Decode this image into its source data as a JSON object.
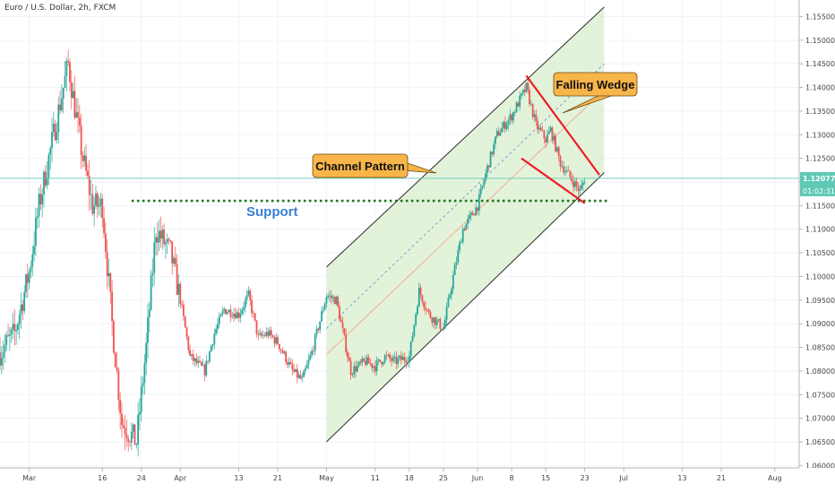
{
  "chart_data": {
    "type": "candlestick",
    "title": "Euro / U.S. Dollar, 2h, FXCM",
    "xlabel": "",
    "ylabel": "",
    "ylim": [
      1.0595,
      1.1585
    ],
    "price_ticks": [
      "1.15500",
      "1.15000",
      "1.14500",
      "1.14000",
      "1.13500",
      "1.13000",
      "1.12500",
      "1.12000",
      "1.11500",
      "1.11000",
      "1.10500",
      "1.10000",
      "1.09500",
      "1.09000",
      "1.08500",
      "1.08000",
      "1.07500",
      "1.07000",
      "1.06500",
      "1.06000"
    ],
    "date_ticks": [
      {
        "label": "Mar",
        "date": "2020-03-01"
      },
      {
        "label": "16",
        "date": "2020-03-16"
      },
      {
        "label": "24",
        "date": "2020-03-24"
      },
      {
        "label": "Apr",
        "date": "2020-04-01"
      },
      {
        "label": "13",
        "date": "2020-04-13"
      },
      {
        "label": "21",
        "date": "2020-04-21"
      },
      {
        "label": "May",
        "date": "2020-05-01"
      },
      {
        "label": "11",
        "date": "2020-05-11"
      },
      {
        "label": "18",
        "date": "2020-05-18"
      },
      {
        "label": "25",
        "date": "2020-05-25"
      },
      {
        "label": "Jun",
        "date": "2020-06-01"
      },
      {
        "label": "8",
        "date": "2020-06-08"
      },
      {
        "label": "15",
        "date": "2020-06-15"
      },
      {
        "label": "23",
        "date": "2020-06-23"
      },
      {
        "label": "Jul",
        "date": "2020-07-01"
      },
      {
        "label": "13",
        "date": "2020-07-13"
      },
      {
        "label": "21",
        "date": "2020-07-21"
      },
      {
        "label": "Aug",
        "date": "2020-08-01"
      }
    ],
    "x_domain": [
      "2020-02-24",
      "2020-08-06"
    ],
    "current_price": "1.12077",
    "countdown": "01:02:31",
    "price_path": [
      [
        "2020-02-24",
        1.084
      ],
      [
        "2020-02-27",
        1.088
      ],
      [
        "2020-03-01",
        1.101
      ],
      [
        "2020-03-03",
        1.115
      ],
      [
        "2020-03-06",
        1.13
      ],
      [
        "2020-03-09",
        1.145
      ],
      [
        "2020-03-10",
        1.138
      ],
      [
        "2020-03-12",
        1.125
      ],
      [
        "2020-03-14",
        1.115
      ],
      [
        "2020-03-16",
        1.115
      ],
      [
        "2020-03-18",
        1.09
      ],
      [
        "2020-03-20",
        1.069
      ],
      [
        "2020-03-23",
        1.065
      ],
      [
        "2020-03-25",
        1.085
      ],
      [
        "2020-03-27",
        1.11
      ],
      [
        "2020-03-30",
        1.105
      ],
      [
        "2020-04-01",
        1.095
      ],
      [
        "2020-04-03",
        1.083
      ],
      [
        "2020-04-06",
        1.08
      ],
      [
        "2020-04-08",
        1.088
      ],
      [
        "2020-04-10",
        1.093
      ],
      [
        "2020-04-13",
        1.092
      ],
      [
        "2020-04-15",
        1.096
      ],
      [
        "2020-04-17",
        1.087
      ],
      [
        "2020-04-19",
        1.088
      ],
      [
        "2020-04-21",
        1.086
      ],
      [
        "2020-04-24",
        1.08
      ],
      [
        "2020-04-26",
        1.078
      ],
      [
        "2020-04-28",
        1.084
      ],
      [
        "2020-05-01",
        1.096
      ],
      [
        "2020-05-03",
        1.095
      ],
      [
        "2020-05-06",
        1.08
      ],
      [
        "2020-05-09",
        1.082
      ],
      [
        "2020-05-11",
        1.081
      ],
      [
        "2020-05-13",
        1.083
      ],
      [
        "2020-05-15",
        1.082
      ],
      [
        "2020-05-18",
        1.083
      ],
      [
        "2020-05-20",
        1.097
      ],
      [
        "2020-05-22",
        1.092
      ],
      [
        "2020-05-25",
        1.089
      ],
      [
        "2020-05-27",
        1.1
      ],
      [
        "2020-05-29",
        1.11
      ],
      [
        "2020-06-01",
        1.115
      ],
      [
        "2020-06-03",
        1.123
      ],
      [
        "2020-06-05",
        1.13
      ],
      [
        "2020-06-08",
        1.134
      ],
      [
        "2020-06-10",
        1.138
      ],
      [
        "2020-06-11",
        1.14
      ],
      [
        "2020-06-13",
        1.132
      ],
      [
        "2020-06-15",
        1.129
      ],
      [
        "2020-06-16",
        1.131
      ],
      [
        "2020-06-18",
        1.124
      ],
      [
        "2020-06-20",
        1.121
      ],
      [
        "2020-06-22",
        1.118
      ],
      [
        "2020-06-23",
        1.1207
      ]
    ],
    "support": {
      "label": "Support",
      "price": 1.116,
      "from": "2020-03-22",
      "to": "2020-06-28"
    },
    "channel": {
      "label": "Channel Pattern",
      "upper": [
        [
          "2020-05-01",
          1.102
        ],
        [
          "2020-06-27",
          1.157
        ]
      ],
      "lower": [
        [
          "2020-05-01",
          1.065
        ],
        [
          "2020-06-27",
          1.122
        ]
      ],
      "mid": [
        [
          "2020-05-01",
          1.0835
        ],
        [
          "2020-06-27",
          1.1395
        ]
      ]
    },
    "wedge": {
      "label": "Falling Wedge",
      "upper": [
        [
          "2020-06-11",
          1.1425
        ],
        [
          "2020-06-26",
          1.1215
        ]
      ],
      "lower": [
        [
          "2020-06-10",
          1.125
        ],
        [
          "2020-06-23",
          1.1155
        ]
      ]
    },
    "grid": true,
    "colors": {
      "up": "#26a69a",
      "down": "#ef5350",
      "channel_fill": "#d9efcd",
      "channel_line": "#2a2a2a",
      "support": "#1a7a1a",
      "support_label": "#3a7fd5",
      "wedge": "#ee1c25",
      "callout_fill": "#f7b54a",
      "price_line": "#5fc9b5"
    }
  }
}
